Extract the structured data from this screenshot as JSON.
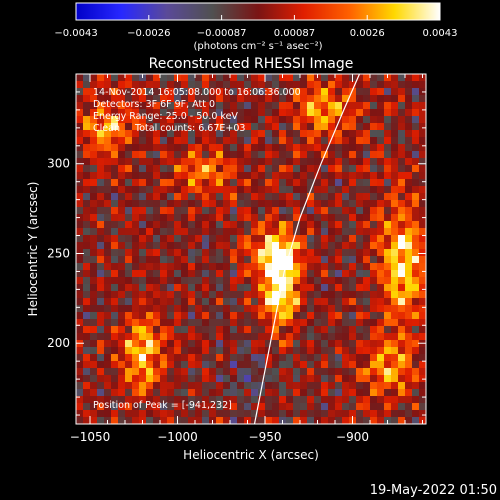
{
  "chart_data": {
    "type": "heatmap",
    "title": "Reconstructed RHESSI Image",
    "xlabel": "Heliocentric X (arcsec)",
    "ylabel": "Heliocentric Y (arcsec)",
    "xlim": [
      -1058,
      -858
    ],
    "ylim": [
      155,
      350
    ],
    "xticks": [
      -1050,
      -1000,
      -950,
      -900
    ],
    "xtick_labels": [
      "−1050",
      "−1000",
      "−950",
      "−900"
    ],
    "yticks": [
      200,
      250,
      300
    ],
    "ytick_labels": [
      "200",
      "250",
      "300"
    ],
    "colorbar": {
      "ticks": [
        "−0.0043",
        "−0.0026",
        "−0.00087",
        "0.00087",
        "0.0026",
        "0.0043"
      ],
      "range": [
        -0.0043,
        0.0043
      ],
      "units": "(photons cm⁻² s⁻¹ asec⁻²)",
      "colors": [
        "#0000c8",
        "#2828ff",
        "#5a4a98",
        "#505050",
        "#7a1414",
        "#e01e00",
        "#ff6000",
        "#ffd800",
        "#ffffff"
      ]
    },
    "annotations": [
      "14-Nov-2014 16:05:08.000 to 16:06:36.000",
      "Detectors: 3F 6F 9F, Att 0",
      "Energy Range: 25.0 - 50.0 keV",
      "Clean     Total counts: 6.67E+03"
    ],
    "peak_label": "Position of Peak = [-941,232]",
    "peak": [
      -941,
      232
    ],
    "limb_curve": [
      [
        -956,
        155
      ],
      [
        -947,
        200
      ],
      [
        -939,
        240
      ],
      [
        -930,
        270
      ],
      [
        -918,
        300
      ],
      [
        -905,
        330
      ],
      [
        -896,
        350
      ]
    ],
    "emission_sources": [
      {
        "x": -941,
        "y": 232,
        "peak": 0.0043,
        "sx": 7,
        "sy": 17
      },
      {
        "x": -945,
        "y": 250,
        "peak": 0.0028,
        "sx": 10,
        "sy": 10
      },
      {
        "x": -872,
        "y": 245,
        "peak": 0.0036,
        "sx": 9,
        "sy": 24
      },
      {
        "x": -1020,
        "y": 195,
        "peak": 0.0031,
        "sx": 9,
        "sy": 16
      },
      {
        "x": -915,
        "y": 330,
        "peak": 0.0027,
        "sx": 12,
        "sy": 12
      },
      {
        "x": -985,
        "y": 295,
        "peak": 0.0022,
        "sx": 13,
        "sy": 9
      },
      {
        "x": -1040,
        "y": 320,
        "peak": 0.0024,
        "sx": 12,
        "sy": 12
      },
      {
        "x": -880,
        "y": 185,
        "peak": 0.0024,
        "sx": 11,
        "sy": 12
      },
      {
        "x": -960,
        "y": 180,
        "peak": -0.0012,
        "sx": 10,
        "sy": 10
      }
    ]
  },
  "footer": {
    "timestamp": "19-May-2022 01:50"
  }
}
